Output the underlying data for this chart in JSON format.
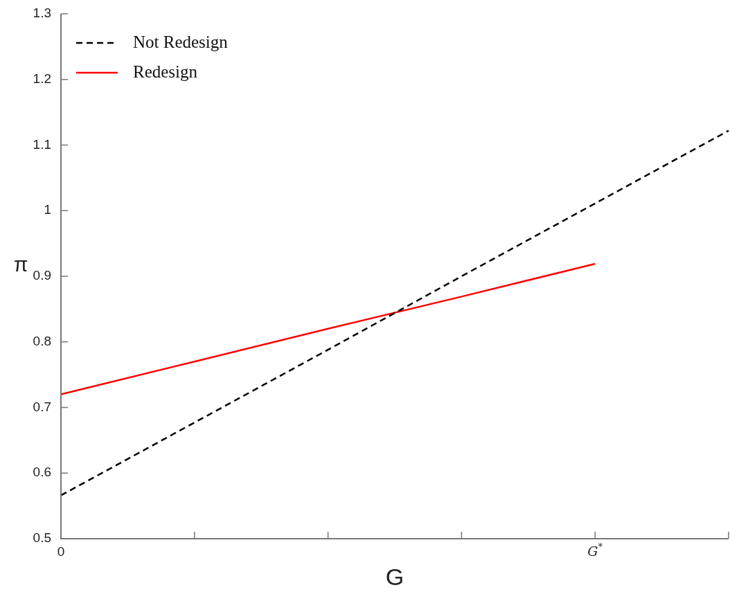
{
  "chart_data": {
    "type": "line",
    "xlabel": "G",
    "ylabel": "π",
    "categories": [
      "0",
      null,
      null,
      null,
      "G$^{*}$",
      null
    ],
    "ylim": [
      0.5,
      1.3
    ],
    "yticks": [
      0.5,
      0.6,
      0.7,
      0.8,
      0.9,
      1,
      1.1,
      1.2,
      1.3
    ],
    "series": [
      {
        "name": "Not Redesign",
        "color": "#000000",
        "line_style": "dashed",
        "values": [
          0.566,
          0.677,
          0.788,
          0.9,
          1.011,
          1.122
        ]
      },
      {
        "name": "Redesign",
        "color": "#ff0000",
        "line_style": "solid",
        "values": [
          0.72,
          0.77,
          0.82,
          0.869,
          0.919,
          null
        ]
      }
    ],
    "legend": "top left",
    "grid": false,
    "marker": "none"
  }
}
